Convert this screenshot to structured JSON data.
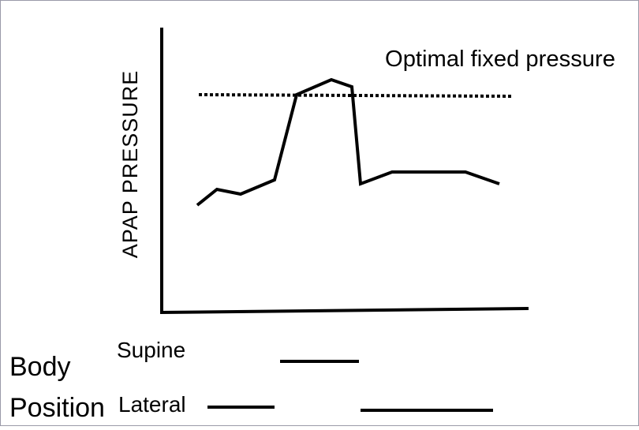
{
  "annotation": "Optimal fixed pressure",
  "y_axis_label": "APAP PRESSURE",
  "row_title": [
    "Body",
    "Position"
  ],
  "rows": [
    "Supine",
    "Lateral"
  ]
}
